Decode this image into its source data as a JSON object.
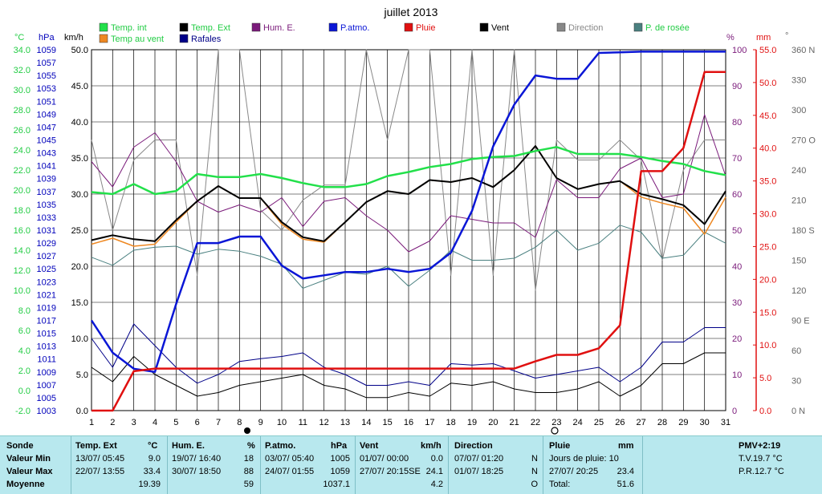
{
  "title": "juillet 2013",
  "colors": {
    "temp_int": "#22e04a",
    "temp_ext": "#000000",
    "temp_vent": "#ee8822",
    "hum": "#7a1a7a",
    "patmo": "#0a16d6",
    "pluie": "#e01010",
    "vent": "#000000",
    "rafales": "#000088",
    "direction": "#888888",
    "rosee": "#4a8080",
    "celsius_axis": "#22cc44",
    "hpa_axis": "#0000bb",
    "panel_bg": "#b8e8ee"
  },
  "axis_units": {
    "celsius": "°C",
    "hpa": "hPa",
    "kmh": "km/h",
    "pct": "%",
    "mm": "mm",
    "deg": "°"
  },
  "legend": [
    {
      "label": "Temp. int",
      "color": "#22e04a",
      "text_color": "#22cc44"
    },
    {
      "label": "Temp. Ext",
      "color": "#000000",
      "text_color": "#22cc44"
    },
    {
      "label": "Hum. E.",
      "color": "#7a1a7a",
      "text_color": "#7a1a7a"
    },
    {
      "label": "P.atmo.",
      "color": "#0a16d6",
      "text_color": "#0a16d6"
    },
    {
      "label": "Pluie",
      "color": "#e01010",
      "text_color": "#e01010"
    },
    {
      "label": "Vent",
      "color": "#000000",
      "text_color": "#000000"
    },
    {
      "label": "Direction",
      "color": "#888888",
      "text_color": "#888888"
    },
    {
      "label": "P. de rosée",
      "color": "#4a8080",
      "text_color": "#22cc44"
    },
    {
      "label": "Temp au vent",
      "color": "#ee8822",
      "text_color": "#22cc44"
    },
    {
      "label": "Rafales",
      "color": "#000088",
      "text_color": "#000088"
    }
  ],
  "chart_data": {
    "type": "line",
    "title": "juillet 2013",
    "x": [
      1,
      2,
      3,
      4,
      5,
      6,
      7,
      8,
      9,
      10,
      11,
      12,
      13,
      14,
      15,
      16,
      17,
      18,
      19,
      20,
      21,
      22,
      23,
      24,
      25,
      26,
      27,
      28,
      29,
      30,
      31
    ],
    "x_ticks": [
      "1",
      "2",
      "3",
      "4",
      "5",
      "6",
      "7",
      "8",
      "9",
      "10",
      "11",
      "12",
      "13",
      "14",
      "15",
      "16",
      "17",
      "18",
      "19",
      "20",
      "21",
      "22",
      "23",
      "24",
      "25",
      "26",
      "27",
      "28",
      "29",
      "30",
      "31"
    ],
    "xlim": [
      1,
      31
    ],
    "axes": {
      "kmh": {
        "range": [
          0,
          50
        ],
        "ticks": [
          "0.0",
          "5.0",
          "10.0",
          "15.0",
          "20.0",
          "25.0",
          "30.0",
          "35.0",
          "40.0",
          "45.0",
          "50.0"
        ]
      },
      "celsius": {
        "range": [
          -2,
          34
        ],
        "ticks": [
          "-2.0",
          "0.0",
          "2.0",
          "4.0",
          "6.0",
          "8.0",
          "10.0",
          "12.0",
          "14.0",
          "16.0",
          "18.0",
          "20.0",
          "22.0",
          "24.0",
          "26.0",
          "28.0",
          "30.0",
          "32.0",
          "34.0"
        ]
      },
      "hpa": {
        "range": [
          1003,
          1059
        ],
        "ticks": [
          "1003",
          "1005",
          "1007",
          "1009",
          "1011",
          "1013",
          "1015",
          "1017",
          "1019",
          "1021",
          "1023",
          "1025",
          "1027",
          "1029",
          "1031",
          "1033",
          "1035",
          "1037",
          "1039",
          "1041",
          "1043",
          "1045",
          "1047",
          "1049",
          "1051",
          "1053",
          "1055",
          "1057",
          "1059"
        ]
      },
      "pct": {
        "range": [
          0,
          100
        ],
        "ticks": [
          "0",
          "10",
          "20",
          "30",
          "40",
          "50",
          "60",
          "70",
          "80",
          "90",
          "100"
        ]
      },
      "mm": {
        "range": [
          0,
          55
        ],
        "ticks": [
          "0.0",
          "5.0",
          "10.0",
          "15.0",
          "20.0",
          "25.0",
          "30.0",
          "35.0",
          "40.0",
          "45.0",
          "50.0",
          "55.0"
        ]
      },
      "deg": {
        "range": [
          0,
          360
        ],
        "ticks": [
          "0 N",
          "30",
          "60",
          "90 E",
          "120",
          "150",
          "180 S",
          "210",
          "240",
          "270 O",
          "300",
          "330",
          "360 N"
        ]
      }
    },
    "series": [
      {
        "name": "Temp. int",
        "axis": "celsius",
        "values": [
          19.8,
          19.6,
          20.6,
          19.6,
          19.9,
          21.6,
          21.3,
          21.3,
          21.6,
          21.2,
          20.7,
          20.3,
          20.3,
          20.6,
          21.4,
          21.8,
          22.3,
          22.6,
          23.1,
          23.3,
          23.4,
          23.9,
          24.3,
          23.6,
          23.6,
          23.6,
          23.3,
          22.9,
          22.6,
          21.9,
          21.5
        ]
      },
      {
        "name": "Temp. Ext",
        "axis": "celsius",
        "values": [
          15.0,
          15.5,
          15.1,
          14.9,
          17.0,
          18.9,
          20.4,
          19.2,
          19.2,
          16.8,
          15.3,
          14.9,
          16.8,
          18.8,
          19.9,
          19.6,
          21.0,
          20.8,
          21.2,
          20.3,
          22.0,
          24.4,
          21.2,
          20.1,
          20.6,
          20.9,
          19.6,
          19.1,
          18.5,
          16.6,
          19.9
        ]
      },
      {
        "name": "Temp au vent",
        "axis": "celsius",
        "values": [
          14.6,
          15.2,
          14.4,
          14.6,
          16.8,
          18.9,
          20.4,
          19.2,
          19.2,
          16.6,
          15.1,
          14.8,
          16.8,
          18.8,
          19.9,
          19.6,
          21.0,
          20.8,
          21.2,
          20.3,
          22.0,
          24.4,
          21.2,
          20.1,
          20.6,
          20.9,
          19.3,
          18.7,
          18.2,
          15.6,
          19.3
        ]
      },
      {
        "name": "Hum. E.",
        "axis": "pct",
        "values": [
          69,
          62,
          73,
          77,
          69,
          58,
          55,
          57,
          55,
          59,
          51,
          58,
          59,
          54,
          50,
          44,
          47,
          54,
          53,
          52,
          52,
          48,
          64,
          59,
          59,
          67,
          70,
          59,
          60,
          82,
          65
        ]
      },
      {
        "name": "P.atmo.",
        "axis": "hpa",
        "values": [
          1017.0,
          1012.0,
          1009.5,
          1009.0,
          1019.5,
          1029.0,
          1029.0,
          1030.0,
          1030.0,
          1025.5,
          1023.5,
          1024.0,
          1024.5,
          1024.5,
          1025.0,
          1024.5,
          1025.0,
          1027.5,
          1034.0,
          1044.0,
          1050.5,
          1055.0,
          1054.5,
          1054.5,
          1058.5,
          1058.6,
          1058.7,
          1058.7,
          1058.7,
          1058.7,
          1058.7
        ]
      },
      {
        "name": "Pluie",
        "axis": "mm",
        "values": [
          0,
          0,
          6.0,
          6.4,
          6.4,
          6.4,
          6.4,
          6.4,
          6.4,
          6.4,
          6.4,
          6.4,
          6.4,
          6.4,
          6.4,
          6.4,
          6.4,
          6.4,
          6.4,
          6.4,
          6.4,
          7.5,
          8.5,
          8.5,
          9.5,
          13.0,
          36.5,
          36.5,
          40.0,
          51.6,
          51.6
        ]
      },
      {
        "name": "Vent",
        "axis": "kmh",
        "values": [
          6.0,
          4.0,
          7.5,
          5.0,
          3.5,
          2.0,
          2.5,
          3.5,
          4.0,
          4.5,
          5.0,
          3.5,
          3.0,
          1.8,
          1.8,
          2.5,
          2.0,
          3.8,
          3.5,
          4.0,
          3.0,
          2.5,
          2.5,
          3.0,
          4.0,
          2.0,
          3.5,
          6.5,
          6.5,
          8.0,
          8.0
        ]
      },
      {
        "name": "Rafales",
        "axis": "kmh",
        "values": [
          10.0,
          6.0,
          12.0,
          9.0,
          6.0,
          3.8,
          5.0,
          6.8,
          7.2,
          7.5,
          8.0,
          6.0,
          5.0,
          3.5,
          3.5,
          4.0,
          3.5,
          6.5,
          6.3,
          6.5,
          5.5,
          4.5,
          5.0,
          5.5,
          6.0,
          4.0,
          6.0,
          9.5,
          9.5,
          11.5,
          11.5
        ]
      },
      {
        "name": "Direction",
        "axis": "deg",
        "values": [
          270,
          180,
          250,
          270,
          270,
          135,
          360,
          360,
          200,
          180,
          210,
          225,
          225,
          360,
          270,
          360,
          360,
          135,
          360,
          135,
          360,
          120,
          270,
          250,
          250,
          270,
          250,
          150,
          240,
          270,
          270
        ]
      },
      {
        "name": "P. de rosée",
        "axis": "celsius",
        "values": [
          13.3,
          12.5,
          14.0,
          14.3,
          14.4,
          13.6,
          14.1,
          13.9,
          13.4,
          12.6,
          10.2,
          11.0,
          11.8,
          11.6,
          12.4,
          10.4,
          12.0,
          14.0,
          13.0,
          13.0,
          13.2,
          14.3,
          16.0,
          14.0,
          14.7,
          16.5,
          15.8,
          13.2,
          13.5,
          15.8,
          14.7
        ]
      }
    ],
    "grid": true,
    "legend_placement": "top"
  },
  "panel": {
    "row_labels": [
      "Sonde",
      "Valeur Min",
      "Valeur Max",
      "Moyenne"
    ],
    "temp": {
      "title": "Temp. Ext",
      "unit": "°C",
      "min": "13/07/ 05:45",
      "min_v": "9.0",
      "max": "22/07/ 13:55",
      "max_v": "33.4",
      "avg": "19.39"
    },
    "hum": {
      "title": "Hum. E.",
      "unit": "%",
      "min": "19/07/ 16:40",
      "min_v": "18",
      "max": "30/07/ 18:50",
      "max_v": "88",
      "avg": "59"
    },
    "patmo": {
      "title": "P.atmo.",
      "unit": "hPa",
      "min": "03/07/ 05:40",
      "min_v": "1005",
      "max": "24/07/ 01:55",
      "max_v": "1059",
      "avg": "1037.1"
    },
    "vent": {
      "title": "Vent",
      "unit": "km/h",
      "min": "01/07/ 00:00",
      "min_v": "0.0",
      "max": "27/07/ 20:15SE",
      "max_v": "24.1",
      "avg": "4.2"
    },
    "dir": {
      "title": "Direction",
      "min": "07/07/ 01:20",
      "min_v": "N",
      "max": "01/07/ 18:25",
      "max_v": "N",
      "avg": "O"
    },
    "pluie": {
      "title": "Pluie",
      "unit": "mm",
      "min": "Jours de pluie: 10",
      "max": "27/07/ 20:25",
      "max_v": "23.4",
      "avg": "Total:",
      "avg_v": "51.6"
    },
    "pmv": {
      "title": "PMV+2:19",
      "line1": "T.V.19.7 °C",
      "line2": "P.R.12.7 °C"
    }
  }
}
